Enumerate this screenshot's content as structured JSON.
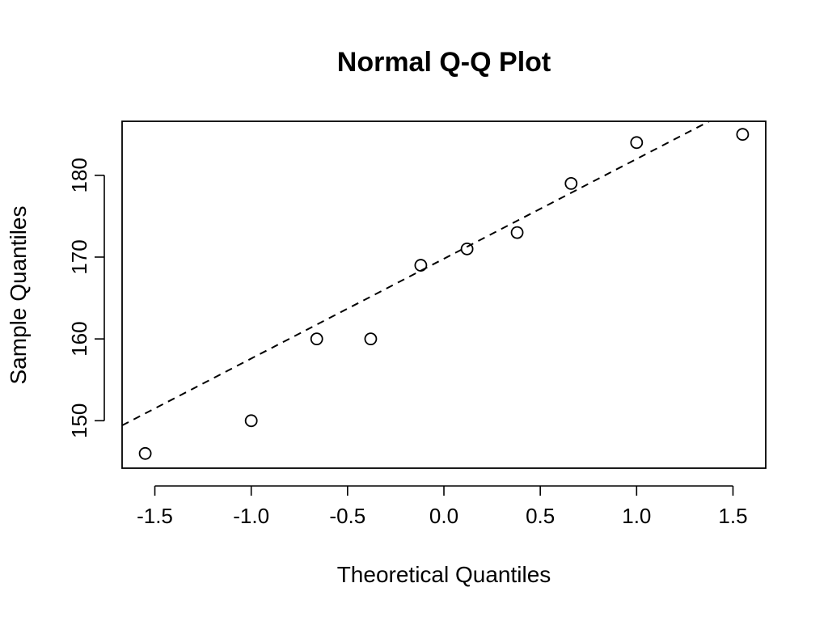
{
  "chart_data": {
    "type": "scatter",
    "title": "Normal Q-Q Plot",
    "xlabel": "Theoretical Quantiles",
    "ylabel": "Sample Quantiles",
    "xlim": [
      -1.67,
      1.67
    ],
    "ylim": [
      144.2,
      186.6
    ],
    "x_ticks": [
      -1.5,
      -1.0,
      -0.5,
      0.0,
      0.5,
      1.0,
      1.5
    ],
    "x_tick_labels": [
      "-1.5",
      "-1.0",
      "-0.5",
      "0.0",
      "0.5",
      "1.0",
      "1.5"
    ],
    "y_ticks": [
      150,
      160,
      170,
      180
    ],
    "y_tick_labels": [
      "150",
      "160",
      "170",
      "180"
    ],
    "grid": false,
    "points": [
      {
        "x": -1.55,
        "y": 146
      },
      {
        "x": -1.0,
        "y": 150
      },
      {
        "x": -0.66,
        "y": 160
      },
      {
        "x": -0.38,
        "y": 160
      },
      {
        "x": -0.12,
        "y": 169
      },
      {
        "x": 0.12,
        "y": 171
      },
      {
        "x": 0.38,
        "y": 173
      },
      {
        "x": 0.66,
        "y": 179
      },
      {
        "x": 1.0,
        "y": 184
      },
      {
        "x": 1.55,
        "y": 185
      }
    ],
    "reference_line": {
      "slope": 12.2,
      "intercept": 169.8,
      "style": "dashed"
    }
  }
}
